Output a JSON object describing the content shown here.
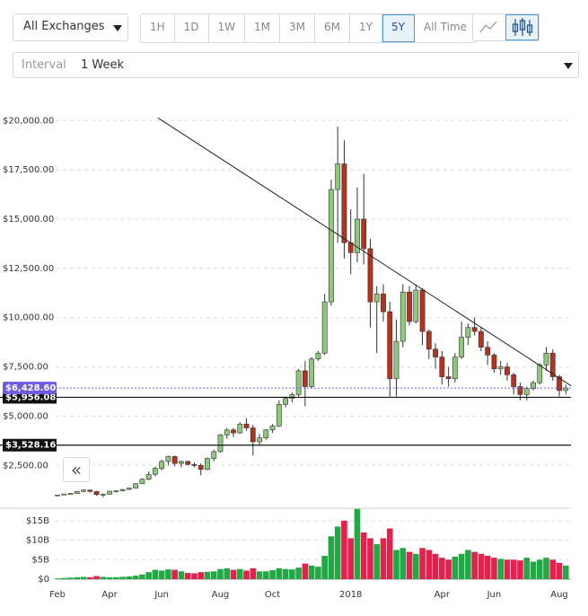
{
  "toolbar": {
    "exchange": "All Exchanges",
    "ranges": [
      "1H",
      "1D",
      "1W",
      "1M",
      "3M",
      "6M",
      "1Y",
      "5Y",
      "All Time"
    ],
    "active_range": 7,
    "interval_label": "Interval",
    "interval": "1 Week",
    "collapse": "«"
  },
  "chart_data": {
    "type": "candlestick",
    "categories": [
      "Feb",
      null,
      null,
      null,
      null,
      null,
      null,
      null,
      "Apr",
      null,
      null,
      null,
      null,
      null,
      null,
      null,
      "Jun",
      null,
      null,
      null,
      null,
      null,
      null,
      null,
      null,
      "Aug",
      null,
      null,
      null,
      null,
      null,
      null,
      null,
      "Oct",
      null,
      null,
      null,
      null,
      null,
      null,
      null,
      null,
      null,
      null,
      null,
      "2018",
      null,
      null,
      null,
      null,
      null,
      null,
      null,
      null,
      null,
      null,
      null,
      null,
      null,
      "Apr",
      null,
      null,
      null,
      null,
      null,
      null,
      null,
      "Jun",
      null,
      null,
      null,
      null,
      null,
      null,
      null,
      null,
      null,
      "Aug",
      null
    ],
    "open": [
      960,
      1000,
      1050,
      1080,
      1180,
      1250,
      1180,
      1020,
      1040,
      1190,
      1210,
      1280,
      1350,
      1570,
      1800,
      2050,
      2350,
      2700,
      2950,
      2600,
      2700,
      2550,
      2500,
      2300,
      2850,
      3200,
      4050,
      4300,
      4150,
      4600,
      4400,
      3700,
      3900,
      4300,
      4500,
      5600,
      5900,
      6100,
      7300,
      6500,
      7900,
      8200,
      10800,
      16500,
      17800,
      13800,
      13300,
      15000,
      13500,
      10800,
      11200,
      10300,
      6900,
      8800,
      11300,
      9800,
      11400,
      9300,
      8400,
      8000,
      7000,
      6900,
      8000,
      9000,
      9500,
      9300,
      8500,
      8100,
      7400,
      7500,
      7100,
      6500,
      6100,
      6400,
      6700,
      7600,
      8200,
      7000,
      6300
    ],
    "high": [
      1010,
      1060,
      1100,
      1200,
      1280,
      1270,
      1200,
      1080,
      1210,
      1230,
      1300,
      1360,
      1600,
      1850,
      2200,
      2450,
      2800,
      3000,
      3000,
      2750,
      2750,
      2650,
      2600,
      2900,
      3300,
      4100,
      4400,
      4400,
      4700,
      4900,
      4550,
      4100,
      4350,
      4600,
      5800,
      6000,
      6200,
      7400,
      7800,
      8000,
      8300,
      11200,
      17000,
      19700,
      19000,
      15500,
      16600,
      17300,
      14000,
      11600,
      11700,
      10800,
      9900,
      11700,
      11600,
      11700,
      11500,
      9400,
      8700,
      8300,
      7500,
      8200,
      9800,
      9700,
      10000,
      9500,
      8800,
      8200,
      7800,
      7700,
      7200,
      6700,
      6500,
      6800,
      7700,
      8500,
      8400,
      7100,
      6600
    ],
    "low": [
      940,
      990,
      1020,
      1070,
      1150,
      1120,
      950,
      900,
      1020,
      1130,
      1190,
      1250,
      1340,
      1560,
      1750,
      1950,
      2250,
      2500,
      2450,
      2400,
      2500,
      2400,
      2000,
      2250,
      2700,
      3150,
      3850,
      3950,
      4100,
      4250,
      3000,
      3500,
      3800,
      4150,
      4450,
      5450,
      5700,
      6000,
      5500,
      6400,
      7800,
      8100,
      10600,
      13800,
      13000,
      12200,
      12800,
      12700,
      9500,
      8200,
      9800,
      6000,
      6000,
      8500,
      9600,
      9700,
      8600,
      7900,
      7400,
      6600,
      6500,
      6700,
      7900,
      8600,
      9100,
      8300,
      7600,
      7200,
      7100,
      6800,
      6100,
      5800,
      5800,
      6300,
      6600,
      7300,
      6800,
      6000,
      6100
    ],
    "close": [
      1000,
      1050,
      1080,
      1180,
      1250,
      1180,
      1020,
      1040,
      1190,
      1210,
      1280,
      1350,
      1570,
      1800,
      2050,
      2350,
      2700,
      2950,
      2600,
      2700,
      2550,
      2500,
      2300,
      2850,
      3200,
      4050,
      4300,
      4150,
      4600,
      4400,
      3700,
      3900,
      4300,
      4500,
      5600,
      5900,
      6100,
      7300,
      6500,
      7900,
      8200,
      10800,
      16500,
      17800,
      13800,
      13300,
      15000,
      13500,
      10800,
      11200,
      10300,
      6900,
      8800,
      11300,
      9800,
      11400,
      9300,
      8400,
      8000,
      7000,
      6900,
      8000,
      9000,
      9500,
      9300,
      8500,
      8100,
      7400,
      7500,
      7100,
      6500,
      6100,
      6400,
      6700,
      7600,
      8200,
      7000,
      6300,
      6428.6
    ],
    "volume": [
      0.2,
      0.3,
      0.4,
      0.5,
      0.6,
      0.5,
      0.8,
      0.6,
      0.5,
      0.5,
      0.6,
      0.7,
      0.9,
      1.2,
      1.8,
      2.4,
      2.2,
      2.5,
      2.4,
      2.0,
      1.6,
      1.5,
      1.8,
      1.9,
      2.0,
      2.6,
      2.8,
      2.4,
      2.6,
      2.2,
      2.8,
      2.0,
      2.0,
      2.3,
      2.8,
      2.6,
      2.5,
      3.0,
      4.0,
      3.5,
      3.2,
      6.0,
      11.0,
      13.5,
      15.0,
      10.5,
      18.0,
      12.0,
      10.5,
      9.0,
      10.5,
      13.0,
      7.5,
      8.0,
      7.0,
      6.5,
      8.0,
      7.5,
      6.5,
      5.5,
      5.0,
      5.8,
      6.5,
      7.5,
      7.0,
      6.5,
      6.0,
      5.5,
      5.2,
      5.0,
      5.0,
      4.8,
      5.5,
      4.5,
      5.0,
      5.5,
      5.0,
      4.2,
      3.5
    ],
    "up_color": "#8cc97a",
    "down_color": "#b5321f",
    "volume_up_color": "#22a845",
    "volume_down_color": "#e3214e",
    "ylim": [
      600,
      20650
    ],
    "yticks": [
      {
        "value": 2500,
        "label": "$2,500.00"
      },
      {
        "value": 5000,
        "label": "$5,000.00"
      },
      {
        "value": 7500,
        "label": "$7,500.00"
      },
      {
        "value": 10000,
        "label": "$10,000.00"
      },
      {
        "value": 12500,
        "label": "$12,500.00"
      },
      {
        "value": 15000,
        "label": "$15,000.00"
      },
      {
        "value": 17500,
        "label": "$17,500.00"
      },
      {
        "value": 20000,
        "label": "$20,000.00"
      }
    ],
    "volume_ylim": [
      0,
      18.2
    ],
    "volume_yticks": [
      {
        "value": 0,
        "label": "$0"
      },
      {
        "value": 5,
        "label": "$5B"
      },
      {
        "value": 10,
        "label": "$10B"
      },
      {
        "value": 15,
        "label": "$15B"
      }
    ],
    "grid": true,
    "trendline": {
      "x": [
        15.4,
        78.8
      ],
      "y": [
        20140,
        6545
      ]
    },
    "levels": [
      {
        "value": 5956.08,
        "label": "$5,956.08"
      },
      {
        "value": 3528.16,
        "label": "$3,528.16"
      }
    ],
    "last_price": {
      "value": 6428.6,
      "label": "$6,428.60",
      "color": "#6f5be0"
    }
  }
}
